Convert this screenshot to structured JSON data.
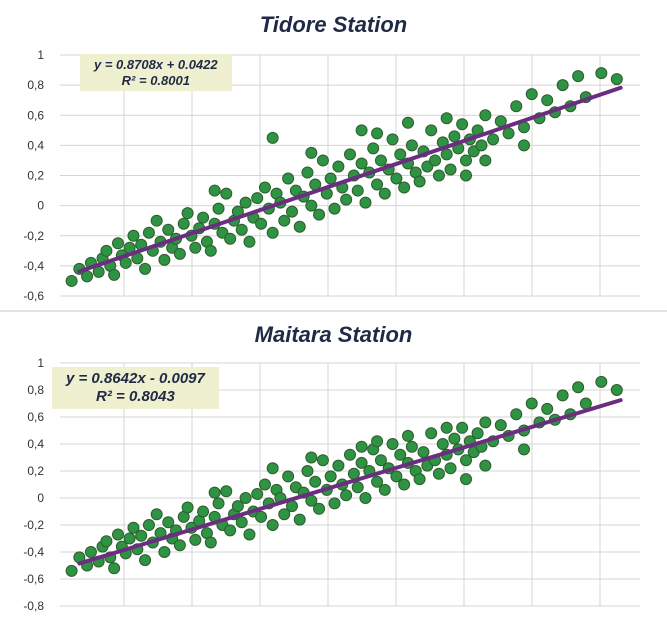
{
  "colors": {
    "point": "#2e9443",
    "trend": "#6a2d80",
    "eq_bg": "#eef0d0"
  },
  "chart_data": [
    {
      "type": "scatter",
      "title": "Tidore Station",
      "xlabel": "",
      "ylabel": "",
      "ylim": [
        -0.6,
        1.0
      ],
      "xlim": [
        -0.6,
        0.9
      ],
      "y_ticks": [
        "1",
        "0,8",
        "0,6",
        "0,4",
        "0,2",
        "0",
        "-0,2",
        "-0,4",
        "-0,6"
      ],
      "grid": true,
      "trendline": {
        "slope": 0.8708,
        "intercept": 0.0422,
        "x_range": [
          -0.55,
          0.85
        ]
      },
      "equation": "y = 0.8708x + 0.0422",
      "r2": "R² = 0.8001",
      "points": [
        [
          -0.57,
          -0.5
        ],
        [
          -0.55,
          -0.42
        ],
        [
          -0.53,
          -0.47
        ],
        [
          -0.52,
          -0.38
        ],
        [
          -0.5,
          -0.44
        ],
        [
          -0.49,
          -0.35
        ],
        [
          -0.48,
          -0.3
        ],
        [
          -0.47,
          -0.4
        ],
        [
          -0.46,
          -0.46
        ],
        [
          -0.45,
          -0.25
        ],
        [
          -0.44,
          -0.33
        ],
        [
          -0.43,
          -0.38
        ],
        [
          -0.42,
          -0.28
        ],
        [
          -0.41,
          -0.2
        ],
        [
          -0.4,
          -0.35
        ],
        [
          -0.39,
          -0.26
        ],
        [
          -0.38,
          -0.42
        ],
        [
          -0.37,
          -0.18
        ],
        [
          -0.36,
          -0.3
        ],
        [
          -0.35,
          -0.1
        ],
        [
          -0.34,
          -0.24
        ],
        [
          -0.33,
          -0.36
        ],
        [
          -0.32,
          -0.16
        ],
        [
          -0.31,
          -0.28
        ],
        [
          -0.3,
          -0.22
        ],
        [
          -0.29,
          -0.32
        ],
        [
          -0.28,
          -0.12
        ],
        [
          -0.27,
          -0.05
        ],
        [
          -0.26,
          -0.2
        ],
        [
          -0.25,
          -0.28
        ],
        [
          -0.24,
          -0.15
        ],
        [
          -0.23,
          -0.08
        ],
        [
          -0.22,
          -0.24
        ],
        [
          -0.21,
          -0.3
        ],
        [
          -0.2,
          -0.12
        ],
        [
          -0.19,
          -0.02
        ],
        [
          -0.18,
          -0.18
        ],
        [
          -0.17,
          0.08
        ],
        [
          -0.16,
          -0.22
        ],
        [
          -0.15,
          -0.1
        ],
        [
          -0.14,
          -0.04
        ],
        [
          -0.13,
          -0.16
        ],
        [
          -0.12,
          0.02
        ],
        [
          -0.11,
          -0.24
        ],
        [
          -0.1,
          -0.08
        ],
        [
          -0.09,
          0.05
        ],
        [
          -0.08,
          -0.12
        ],
        [
          -0.07,
          0.12
        ],
        [
          -0.06,
          -0.02
        ],
        [
          -0.05,
          -0.18
        ],
        [
          -0.04,
          0.08
        ],
        [
          -0.03,
          0.02
        ],
        [
          -0.02,
          -0.1
        ],
        [
          -0.01,
          0.18
        ],
        [
          0.0,
          -0.04
        ],
        [
          0.01,
          0.1
        ],
        [
          0.02,
          -0.14
        ],
        [
          0.03,
          0.06
        ],
        [
          0.04,
          0.22
        ],
        [
          0.05,
          0.0
        ],
        [
          0.06,
          0.14
        ],
        [
          0.07,
          -0.06
        ],
        [
          0.08,
          0.3
        ],
        [
          0.09,
          0.08
        ],
        [
          0.1,
          0.18
        ],
        [
          0.11,
          -0.02
        ],
        [
          0.12,
          0.26
        ],
        [
          0.13,
          0.12
        ],
        [
          0.14,
          0.04
        ],
        [
          0.15,
          0.34
        ],
        [
          0.16,
          0.2
        ],
        [
          0.17,
          0.1
        ],
        [
          0.18,
          0.28
        ],
        [
          0.19,
          0.02
        ],
        [
          0.2,
          0.22
        ],
        [
          0.21,
          0.38
        ],
        [
          0.22,
          0.14
        ],
        [
          0.23,
          0.3
        ],
        [
          0.24,
          0.08
        ],
        [
          0.25,
          0.24
        ],
        [
          0.26,
          0.44
        ],
        [
          0.27,
          0.18
        ],
        [
          0.28,
          0.34
        ],
        [
          0.29,
          0.12
        ],
        [
          0.3,
          0.28
        ],
        [
          0.31,
          0.4
        ],
        [
          0.32,
          0.22
        ],
        [
          0.33,
          0.16
        ],
        [
          0.34,
          0.36
        ],
        [
          0.35,
          0.26
        ],
        [
          0.36,
          0.5
        ],
        [
          0.37,
          0.3
        ],
        [
          0.38,
          0.2
        ],
        [
          0.39,
          0.42
        ],
        [
          0.4,
          0.34
        ],
        [
          0.41,
          0.24
        ],
        [
          0.42,
          0.46
        ],
        [
          0.43,
          0.38
        ],
        [
          0.44,
          0.54
        ],
        [
          0.45,
          0.3
        ],
        [
          0.46,
          0.44
        ],
        [
          0.47,
          0.36
        ],
        [
          0.48,
          0.5
        ],
        [
          0.49,
          0.4
        ],
        [
          0.5,
          0.6
        ],
        [
          0.52,
          0.44
        ],
        [
          0.54,
          0.56
        ],
        [
          0.56,
          0.48
        ],
        [
          0.58,
          0.66
        ],
        [
          0.6,
          0.52
        ],
        [
          0.62,
          0.74
        ],
        [
          0.64,
          0.58
        ],
        [
          0.66,
          0.7
        ],
        [
          0.68,
          0.62
        ],
        [
          0.7,
          0.8
        ],
        [
          0.72,
          0.66
        ],
        [
          0.74,
          0.86
        ],
        [
          0.76,
          0.72
        ],
        [
          0.8,
          0.88
        ],
        [
          0.84,
          0.84
        ],
        [
          -0.05,
          0.45
        ],
        [
          0.18,
          0.5
        ],
        [
          0.3,
          0.55
        ],
        [
          0.4,
          0.58
        ],
        [
          0.5,
          0.3
        ],
        [
          -0.2,
          0.1
        ],
        [
          0.05,
          0.35
        ],
        [
          0.22,
          0.48
        ],
        [
          0.6,
          0.4
        ],
        [
          0.45,
          0.2
        ]
      ]
    },
    {
      "type": "scatter",
      "title": "Maitara Station",
      "xlabel": "",
      "ylabel": "",
      "ylim": [
        -0.8,
        1.0
      ],
      "xlim": [
        -0.6,
        0.9
      ],
      "y_ticks": [
        "1",
        "0,8",
        "0,6",
        "0,4",
        "0,2",
        "0",
        "-0,2",
        "-0,4",
        "-0,6",
        "-0,8"
      ],
      "grid": true,
      "trendline": {
        "slope": 0.8642,
        "intercept": -0.0097,
        "x_range": [
          -0.55,
          0.85
        ]
      },
      "equation": "y = 0.8642x - 0.0097",
      "r2": "R² = 0.8043",
      "points": [
        [
          -0.57,
          -0.54
        ],
        [
          -0.55,
          -0.44
        ],
        [
          -0.53,
          -0.5
        ],
        [
          -0.52,
          -0.4
        ],
        [
          -0.5,
          -0.47
        ],
        [
          -0.49,
          -0.36
        ],
        [
          -0.48,
          -0.32
        ],
        [
          -0.47,
          -0.44
        ],
        [
          -0.46,
          -0.52
        ],
        [
          -0.45,
          -0.27
        ],
        [
          -0.44,
          -0.36
        ],
        [
          -0.43,
          -0.41
        ],
        [
          -0.42,
          -0.3
        ],
        [
          -0.41,
          -0.22
        ],
        [
          -0.4,
          -0.38
        ],
        [
          -0.39,
          -0.28
        ],
        [
          -0.38,
          -0.46
        ],
        [
          -0.37,
          -0.2
        ],
        [
          -0.36,
          -0.33
        ],
        [
          -0.35,
          -0.12
        ],
        [
          -0.34,
          -0.26
        ],
        [
          -0.33,
          -0.4
        ],
        [
          -0.32,
          -0.18
        ],
        [
          -0.31,
          -0.3
        ],
        [
          -0.3,
          -0.24
        ],
        [
          -0.29,
          -0.35
        ],
        [
          -0.28,
          -0.14
        ],
        [
          -0.27,
          -0.07
        ],
        [
          -0.26,
          -0.22
        ],
        [
          -0.25,
          -0.31
        ],
        [
          -0.24,
          -0.17
        ],
        [
          -0.23,
          -0.1
        ],
        [
          -0.22,
          -0.26
        ],
        [
          -0.21,
          -0.33
        ],
        [
          -0.2,
          -0.14
        ],
        [
          -0.19,
          -0.04
        ],
        [
          -0.18,
          -0.2
        ],
        [
          -0.17,
          0.05
        ],
        [
          -0.16,
          -0.24
        ],
        [
          -0.15,
          -0.12
        ],
        [
          -0.14,
          -0.06
        ],
        [
          -0.13,
          -0.18
        ],
        [
          -0.12,
          0.0
        ],
        [
          -0.11,
          -0.27
        ],
        [
          -0.1,
          -0.1
        ],
        [
          -0.09,
          0.03
        ],
        [
          -0.08,
          -0.14
        ],
        [
          -0.07,
          0.1
        ],
        [
          -0.06,
          -0.04
        ],
        [
          -0.05,
          -0.2
        ],
        [
          -0.04,
          0.06
        ],
        [
          -0.03,
          0.0
        ],
        [
          -0.02,
          -0.12
        ],
        [
          -0.01,
          0.16
        ],
        [
          0.0,
          -0.06
        ],
        [
          0.01,
          0.08
        ],
        [
          0.02,
          -0.16
        ],
        [
          0.03,
          0.04
        ],
        [
          0.04,
          0.2
        ],
        [
          0.05,
          -0.02
        ],
        [
          0.06,
          0.12
        ],
        [
          0.07,
          -0.08
        ],
        [
          0.08,
          0.28
        ],
        [
          0.09,
          0.06
        ],
        [
          0.1,
          0.16
        ],
        [
          0.11,
          -0.04
        ],
        [
          0.12,
          0.24
        ],
        [
          0.13,
          0.1
        ],
        [
          0.14,
          0.02
        ],
        [
          0.15,
          0.32
        ],
        [
          0.16,
          0.18
        ],
        [
          0.17,
          0.08
        ],
        [
          0.18,
          0.26
        ],
        [
          0.19,
          0.0
        ],
        [
          0.2,
          0.2
        ],
        [
          0.21,
          0.36
        ],
        [
          0.22,
          0.12
        ],
        [
          0.23,
          0.28
        ],
        [
          0.24,
          0.06
        ],
        [
          0.25,
          0.22
        ],
        [
          0.26,
          0.4
        ],
        [
          0.27,
          0.16
        ],
        [
          0.28,
          0.32
        ],
        [
          0.29,
          0.1
        ],
        [
          0.3,
          0.26
        ],
        [
          0.31,
          0.38
        ],
        [
          0.32,
          0.2
        ],
        [
          0.33,
          0.14
        ],
        [
          0.34,
          0.34
        ],
        [
          0.35,
          0.24
        ],
        [
          0.36,
          0.48
        ],
        [
          0.37,
          0.28
        ],
        [
          0.38,
          0.18
        ],
        [
          0.39,
          0.4
        ],
        [
          0.4,
          0.32
        ],
        [
          0.41,
          0.22
        ],
        [
          0.42,
          0.44
        ],
        [
          0.43,
          0.36
        ],
        [
          0.44,
          0.52
        ],
        [
          0.45,
          0.28
        ],
        [
          0.46,
          0.42
        ],
        [
          0.47,
          0.34
        ],
        [
          0.48,
          0.48
        ],
        [
          0.49,
          0.38
        ],
        [
          0.5,
          0.56
        ],
        [
          0.52,
          0.42
        ],
        [
          0.54,
          0.54
        ],
        [
          0.56,
          0.46
        ],
        [
          0.58,
          0.62
        ],
        [
          0.6,
          0.5
        ],
        [
          0.62,
          0.7
        ],
        [
          0.64,
          0.56
        ],
        [
          0.66,
          0.66
        ],
        [
          0.68,
          0.58
        ],
        [
          0.7,
          0.76
        ],
        [
          0.72,
          0.62
        ],
        [
          0.74,
          0.82
        ],
        [
          0.76,
          0.7
        ],
        [
          0.8,
          0.86
        ],
        [
          0.84,
          0.8
        ],
        [
          -0.05,
          0.22
        ],
        [
          0.18,
          0.38
        ],
        [
          0.3,
          0.46
        ],
        [
          0.4,
          0.52
        ],
        [
          0.5,
          0.24
        ],
        [
          -0.2,
          0.04
        ],
        [
          0.05,
          0.3
        ],
        [
          0.22,
          0.42
        ],
        [
          0.6,
          0.36
        ],
        [
          0.45,
          0.14
        ]
      ]
    }
  ]
}
